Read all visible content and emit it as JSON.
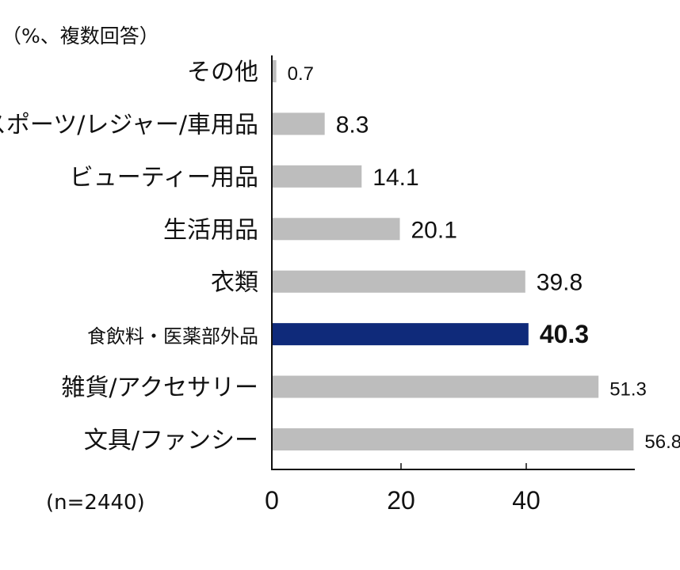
{
  "chart_data": {
    "type": "bar",
    "orientation": "horizontal",
    "unit_note": "（%、複数回答）",
    "sample_note": "(n=2440)",
    "categories": [
      "その他",
      "スポーツ/レジャー/車用品",
      "ビューティー用品",
      "生活用品",
      "衣類",
      "食飲料・医薬部外品",
      "雑貨/アクセサリー",
      "文具/ファンシー"
    ],
    "values": [
      0.7,
      8.3,
      14.1,
      20.1,
      39.8,
      40.3,
      51.3,
      56.8
    ],
    "value_labels": [
      "0.7",
      "8.3",
      "14.1",
      "20.1",
      "39.8",
      "40.3",
      "51.3",
      "56.8"
    ],
    "highlight_index": 5,
    "xlim": [
      0,
      57
    ],
    "x_ticks": [
      "0",
      "20",
      "40"
    ],
    "x_tick_values": [
      0,
      20,
      40
    ],
    "colors": {
      "bar": "#bdbdbd",
      "highlight": "#0f2a7a",
      "axis": "#111111"
    },
    "grid": false
  }
}
